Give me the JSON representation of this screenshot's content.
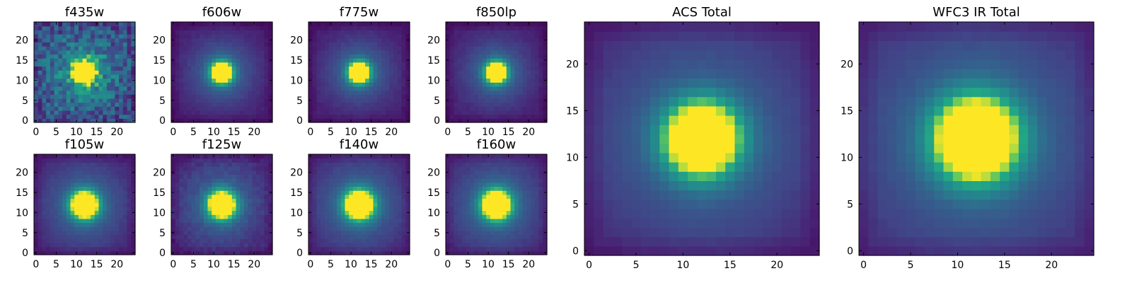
{
  "chart_data": [
    {
      "type": "heatmap",
      "title": "f435w",
      "colormap": "viridis",
      "grid_size": 25,
      "xlim": [
        0,
        24
      ],
      "ylim": [
        0,
        24
      ],
      "xticks": [
        0,
        5,
        10,
        15,
        20
      ],
      "yticks": [
        0,
        5,
        10,
        15,
        20
      ],
      "peak_center": [
        12,
        12
      ],
      "peak_width": 1.8,
      "background_level": 0.3,
      "noise": 0.2
    },
    {
      "type": "heatmap",
      "title": "f606w",
      "colormap": "viridis",
      "grid_size": 25,
      "xlim": [
        0,
        24
      ],
      "ylim": [
        0,
        24
      ],
      "xticks": [
        0,
        5,
        10,
        15,
        20
      ],
      "yticks": [
        0,
        5,
        10,
        15,
        20
      ],
      "peak_center": [
        12,
        12
      ],
      "peak_width": 1.8,
      "background_level": 0.1,
      "noise": 0.02
    },
    {
      "type": "heatmap",
      "title": "f775w",
      "colormap": "viridis",
      "grid_size": 25,
      "xlim": [
        0,
        24
      ],
      "ylim": [
        0,
        24
      ],
      "xticks": [
        0,
        5,
        10,
        15,
        20
      ],
      "yticks": [
        0,
        5,
        10,
        15,
        20
      ],
      "peak_center": [
        12,
        12
      ],
      "peak_width": 1.8,
      "background_level": 0.1,
      "noise": 0.02
    },
    {
      "type": "heatmap",
      "title": "f850lp",
      "colormap": "viridis",
      "grid_size": 25,
      "xlim": [
        0,
        24
      ],
      "ylim": [
        0,
        24
      ],
      "xticks": [
        0,
        5,
        10,
        15,
        20
      ],
      "yticks": [
        0,
        5,
        10,
        15,
        20
      ],
      "peak_center": [
        12,
        12
      ],
      "peak_width": 1.8,
      "background_level": 0.1,
      "noise": 0.02
    },
    {
      "type": "heatmap",
      "title": "f105w",
      "colormap": "viridis",
      "grid_size": 25,
      "xlim": [
        0,
        24
      ],
      "ylim": [
        0,
        24
      ],
      "xticks": [
        0,
        5,
        10,
        15,
        20
      ],
      "yticks": [
        0,
        5,
        10,
        15,
        20
      ],
      "peak_center": [
        12,
        12
      ],
      "peak_width": 2.3,
      "background_level": 0.1,
      "noise": 0.02
    },
    {
      "type": "heatmap",
      "title": "f125w",
      "colormap": "viridis",
      "grid_size": 25,
      "xlim": [
        0,
        24
      ],
      "ylim": [
        0,
        24
      ],
      "xticks": [
        0,
        5,
        10,
        15,
        20
      ],
      "yticks": [
        0,
        5,
        10,
        15,
        20
      ],
      "peak_center": [
        12,
        12
      ],
      "peak_width": 2.3,
      "background_level": 0.1,
      "noise": 0.04
    },
    {
      "type": "heatmap",
      "title": "f140w",
      "colormap": "viridis",
      "grid_size": 25,
      "xlim": [
        0,
        24
      ],
      "ylim": [
        0,
        24
      ],
      "xticks": [
        0,
        5,
        10,
        15,
        20
      ],
      "yticks": [
        0,
        5,
        10,
        15,
        20
      ],
      "peak_center": [
        12,
        12
      ],
      "peak_width": 2.5,
      "background_level": 0.1,
      "noise": 0.02
    },
    {
      "type": "heatmap",
      "title": "f160w",
      "colormap": "viridis",
      "grid_size": 25,
      "xlim": [
        0,
        24
      ],
      "ylim": [
        0,
        24
      ],
      "xticks": [
        0,
        5,
        10,
        15,
        20
      ],
      "yticks": [
        0,
        5,
        10,
        15,
        20
      ],
      "peak_center": [
        12,
        12
      ],
      "peak_width": 2.5,
      "background_level": 0.1,
      "noise": 0.02
    },
    {
      "type": "heatmap",
      "title": "ACS Total",
      "colormap": "viridis",
      "grid_size": 25,
      "xlim": [
        0,
        24
      ],
      "ylim": [
        0,
        24
      ],
      "xticks": [
        0,
        5,
        10,
        15,
        20
      ],
      "yticks": [
        0,
        5,
        10,
        15,
        20
      ],
      "peak_center": [
        12,
        12
      ],
      "peak_width": 2.6,
      "background_level": 0.1,
      "noise": 0.01
    },
    {
      "type": "heatmap",
      "title": "WFC3 IR Total",
      "colormap": "viridis",
      "grid_size": 25,
      "xlim": [
        0,
        24
      ],
      "ylim": [
        0,
        24
      ],
      "xticks": [
        0,
        5,
        10,
        15,
        20
      ],
      "yticks": [
        0,
        5,
        10,
        15,
        20
      ],
      "peak_center": [
        12,
        12
      ],
      "peak_width": 3.0,
      "background_level": 0.1,
      "noise": 0.01
    }
  ]
}
